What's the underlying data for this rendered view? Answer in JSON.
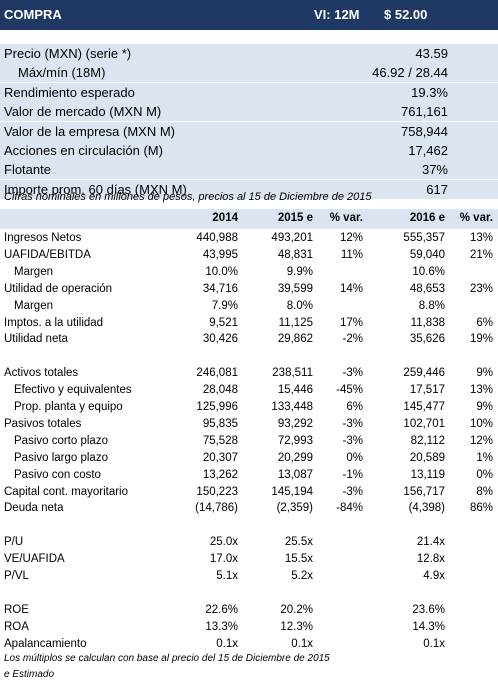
{
  "header": {
    "title": "COMPRA",
    "vi_label": "VI: 12M",
    "price": "$ 52.00"
  },
  "summary": [
    {
      "label": "Precio (MXN) (serie *)",
      "value": "43.59",
      "indent": false
    },
    {
      "label": "Máx/mín (18M)",
      "value": "46.92 / 28.44",
      "indent": true
    },
    {
      "label": "Rendimiento esperado",
      "value": "19.3%",
      "indent": false
    },
    {
      "label": "Valor de mercado (MXN M)",
      "value": "761,161",
      "indent": false
    },
    {
      "label": "Valor de la empresa (MXN M)",
      "value": "758,944",
      "indent": false
    },
    {
      "label": "Acciones en circulación (M)",
      "value": "17,462",
      "indent": false
    },
    {
      "label": "Flotante",
      "value": "37%",
      "indent": false
    },
    {
      "label": "Importe prom. 60 días (MXN M)",
      "value": "617",
      "indent": false
    }
  ],
  "note": "Cifras nominales en millones de pesos, precios al 15 de Diciembre de 2015",
  "table": {
    "columns": [
      "",
      "2014",
      "2015 e",
      "% var.",
      "2016 e",
      "% var."
    ],
    "rows": [
      {
        "cells": [
          "Ingresos Netos",
          "440,988",
          "493,201",
          "12%",
          "555,357",
          "13%"
        ]
      },
      {
        "cells": [
          "UAFIDA/EBITDA",
          "43,995",
          "48,831",
          "11%",
          "59,040",
          "21%"
        ]
      },
      {
        "cells": [
          "Margen",
          "10.0%",
          "9.9%",
          "",
          "10.6%",
          ""
        ],
        "indent": true
      },
      {
        "cells": [
          "Utilidad de operación",
          "34,716",
          "39,599",
          "14%",
          "48,653",
          "23%"
        ]
      },
      {
        "cells": [
          "Margen",
          "7.9%",
          "8.0%",
          "",
          "8.8%",
          ""
        ],
        "indent": true
      },
      {
        "cells": [
          "Imptos. a la utilidad",
          "9,521",
          "11,125",
          "17%",
          "11,838",
          "6%"
        ]
      },
      {
        "cells": [
          "Utilidad neta",
          "30,426",
          "29,862",
          "-2%",
          "35,626",
          "19%"
        ]
      },
      {
        "cells": [
          "",
          "",
          "",
          "",
          "",
          ""
        ]
      },
      {
        "cells": [
          "Activos totales",
          "246,081",
          "238,511",
          "-3%",
          "259,446",
          "9%"
        ]
      },
      {
        "cells": [
          "Efectivo y equivalentes",
          "28,048",
          "15,446",
          "-45%",
          "17,517",
          "13%"
        ],
        "indent": true
      },
      {
        "cells": [
          "Prop. planta y equipo",
          "125,996",
          "133,448",
          "6%",
          "145,477",
          "9%"
        ],
        "indent": true
      },
      {
        "cells": [
          "Pasivos totales",
          "95,835",
          "93,292",
          "-3%",
          "102,701",
          "10%"
        ]
      },
      {
        "cells": [
          "Pasivo corto plazo",
          "75,528",
          "72,993",
          "-3%",
          "82,112",
          "12%"
        ],
        "indent": true
      },
      {
        "cells": [
          "Pasivo largo plazo",
          "20,307",
          "20,299",
          "0%",
          "20,589",
          "1%"
        ],
        "indent": true
      },
      {
        "cells": [
          "Pasivo con costo",
          "13,262",
          "13,087",
          "-1%",
          "13,119",
          "0%"
        ],
        "indent": true
      },
      {
        "cells": [
          "Capital cont. mayoritario",
          "150,223",
          "145,194",
          "-3%",
          "156,717",
          "8%"
        ]
      },
      {
        "cells": [
          "Deuda neta",
          "(14,786)",
          "(2,359)",
          "-84%",
          "(4,398)",
          "86%"
        ]
      },
      {
        "cells": [
          "",
          "",
          "",
          "",
          "",
          ""
        ]
      },
      {
        "cells": [
          "P/U",
          "25.0x",
          "25.5x",
          "",
          "21.4x",
          ""
        ]
      },
      {
        "cells": [
          "VE/UAFIDA",
          "17.0x",
          "15.5x",
          "",
          "12.8x",
          ""
        ]
      },
      {
        "cells": [
          "P/VL",
          "5.1x",
          "5.2x",
          "",
          "4.9x",
          ""
        ]
      },
      {
        "cells": [
          "",
          "",
          "",
          "",
          "",
          ""
        ]
      },
      {
        "cells": [
          "ROE",
          "22.6%",
          "20.2%",
          "",
          "23.6%",
          ""
        ]
      },
      {
        "cells": [
          "ROA",
          "13.3%",
          "12.3%",
          "",
          "14.3%",
          ""
        ]
      },
      {
        "cells": [
          "Apalancamiento",
          "0.1x",
          "0.1x",
          "",
          "0.1x",
          ""
        ]
      }
    ]
  },
  "footnotes": [
    "Los múltiplos se calculan con base al precio del 15 de Diciembre de 2015",
    "e Estimado"
  ]
}
